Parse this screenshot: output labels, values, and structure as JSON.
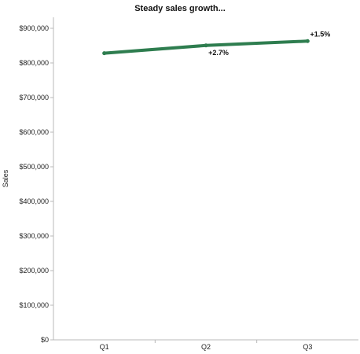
{
  "chart_data": {
    "type": "line",
    "title": "Steady sales growth...",
    "xlabel": "",
    "ylabel": "Sales",
    "categories": [
      "Q1",
      "Q2",
      "Q3"
    ],
    "series": [
      {
        "values": [
          828000,
          850500,
          863000
        ],
        "labels": [
          "",
          "+2.7%",
          "+1.5%"
        ],
        "color": "#2e7d4f"
      }
    ],
    "ylim": [
      0,
      900000
    ],
    "yticks": [
      0,
      100000,
      200000,
      300000,
      400000,
      500000,
      600000,
      700000,
      800000,
      900000
    ],
    "ytick_labels": [
      "$0",
      "$100,000",
      "$200,000",
      "$300,000",
      "$400,000",
      "$500,000",
      "$600,000",
      "$700,000",
      "$800,000",
      "$900,000"
    ],
    "grid": false,
    "legend": "none"
  }
}
